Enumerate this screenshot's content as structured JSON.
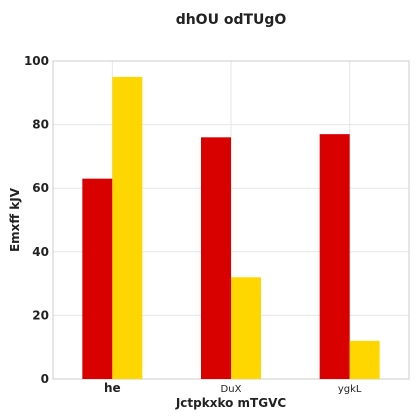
{
  "chart_data": {
    "type": "bar",
    "title": "dhOU odTUgO",
    "xlabel": "Jctpkxko mTGVC",
    "ylabel": "Emxff kJV",
    "categories": [
      "he",
      "DuX",
      "ygkL"
    ],
    "series": [
      {
        "color": "#d90000",
        "values": [
          63,
          76,
          77
        ]
      },
      {
        "color": "#ffd700",
        "values": [
          95,
          32,
          12
        ]
      }
    ],
    "ylim": [
      0,
      100
    ],
    "yticks": [
      0,
      20,
      40,
      60,
      80,
      100
    ],
    "grid": true,
    "legend": "none"
  }
}
